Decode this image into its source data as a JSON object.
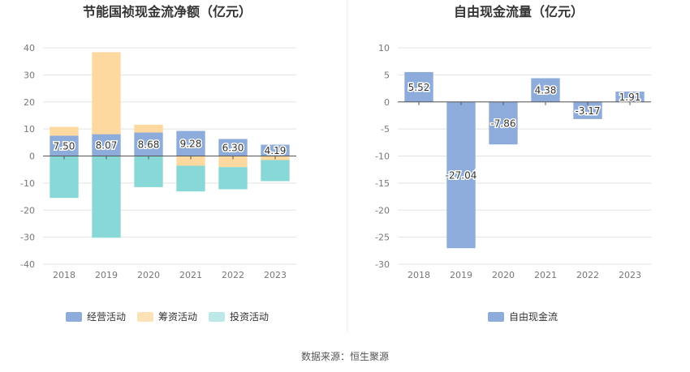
{
  "chart_data": [
    {
      "type": "bar",
      "stacked": true,
      "title": "节能国祯现金流净额（亿元）",
      "categories": [
        "2018",
        "2019",
        "2020",
        "2021",
        "2022",
        "2023"
      ],
      "ylim": [
        -40,
        40
      ],
      "yticks": [
        40,
        30,
        20,
        10,
        0,
        -10,
        -20,
        -30,
        -40
      ],
      "grid": true,
      "legend_position": "bottom",
      "series": [
        {
          "name": "经营活动",
          "color": "#8eacdb",
          "values": [
            7.5,
            8.07,
            8.68,
            9.28,
            6.3,
            4.19
          ],
          "labels": [
            "7.50",
            "8.07",
            "8.68",
            "9.28",
            "6.30",
            "4.19"
          ]
        },
        {
          "name": "筹资活动",
          "color": "#fdd9a0",
          "values": [
            3.3,
            30.3,
            2.9,
            -3.6,
            -4.1,
            -1.5
          ]
        },
        {
          "name": "投资活动",
          "color": "#88d8d8",
          "values": [
            -15.5,
            -30.2,
            -11.5,
            -9.5,
            -8.2,
            -7.8
          ]
        }
      ],
      "legend": [
        {
          "name": "经营活动",
          "color": "#8eacdb"
        },
        {
          "name": "筹资活动",
          "color": "#fde2b5"
        },
        {
          "name": "投资活动",
          "color": "#bde8e8"
        }
      ]
    },
    {
      "type": "bar",
      "title": "自由现金流量（亿元）",
      "categories": [
        "2018",
        "2019",
        "2020",
        "2021",
        "2022",
        "2023"
      ],
      "ylim": [
        -30,
        10
      ],
      "yticks": [
        10,
        5,
        0,
        -5,
        -10,
        -15,
        -20,
        -25,
        -30
      ],
      "grid": true,
      "legend_position": "bottom",
      "series": [
        {
          "name": "自由现金流",
          "color": "#8eacdb",
          "values": [
            5.52,
            -27.04,
            -7.86,
            4.38,
            -3.17,
            1.91
          ],
          "labels": [
            "5.52",
            "-27.04",
            "-7.86",
            "4.38",
            "-3.17",
            "1.91"
          ]
        }
      ],
      "legend": [
        {
          "name": "自由现金流",
          "color": "#8eacdb"
        }
      ]
    }
  ],
  "footer": {
    "source": "数据来源：恒生聚源"
  }
}
